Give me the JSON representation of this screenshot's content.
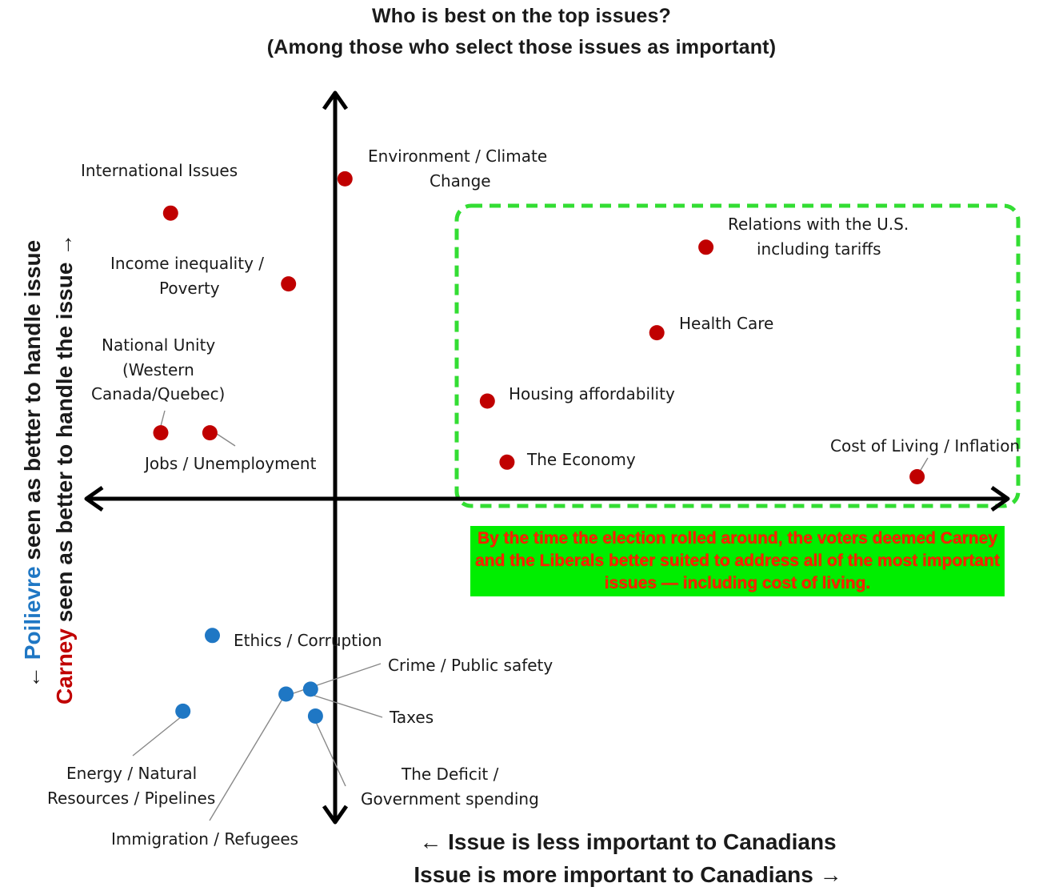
{
  "title": "Who is best on the top issues?",
  "subtitle": "(Among those who select those issues as important)",
  "x_caption_line1": "← Issue is less important to Canadians",
  "x_caption_line2": "Issue is more important to Canadians →",
  "y_caption": {
    "outer_name": "Poilievre",
    "outer_rest": " seen as better to handle issue",
    "outer_prefix": "← ",
    "inner_name": "Carney",
    "inner_rest": " seen as better to handle  the issue →"
  },
  "callout_text": "By the time the election rolled around, the voters deemed Carney and the Liberals better suited to address all of the most important issues — including cost of living.",
  "colors": {
    "carney": "#c00000",
    "poilievre": "#1f77c4",
    "box": "#33dd33",
    "callout_bg": "#00ee00",
    "callout_text": "#ff2200"
  },
  "chart_data": {
    "type": "scatter",
    "title": "Who is best on the top issues?",
    "subtitle": "(Among those who select those issues as important)",
    "xlabel": "← Issue is less important to Canadians / Issue is more important to Canadians →",
    "ylabel": "← Poilievre seen as better to handle issue / Carney seen as better to handle the issue →",
    "xlim": [
      -1,
      2.75
    ],
    "ylim": [
      -1.3,
      1.6
    ],
    "grid": false,
    "series": [
      {
        "name": "Carney",
        "color": "#c00000",
        "points": [
          {
            "label": "Environment / Climate Change",
            "x": 0.04,
            "y": 1.31
          },
          {
            "label": "International Issues",
            "x": -0.67,
            "y": 1.17
          },
          {
            "label": "Income inequality / Poverty",
            "x": -0.19,
            "y": 0.88
          },
          {
            "label": "National Unity (Western Canada/Quebec)",
            "x": -0.71,
            "y": 0.27
          },
          {
            "label": "Jobs / Unemployment",
            "x": -0.51,
            "y": 0.27
          },
          {
            "label": "Relations with the U.S. including tariffs",
            "x": 1.51,
            "y": 1.03
          },
          {
            "label": "Health Care",
            "x": 1.31,
            "y": 0.68
          },
          {
            "label": "Housing affordability",
            "x": 0.62,
            "y": 0.4
          },
          {
            "label": "The Economy",
            "x": 0.7,
            "y": 0.15
          },
          {
            "label": "Cost of Living / Inflation",
            "x": 2.37,
            "y": 0.09
          }
        ]
      },
      {
        "name": "Poilievre",
        "color": "#1f77c4",
        "points": [
          {
            "label": "Ethics / Corruption",
            "x": -0.5,
            "y": -0.56
          },
          {
            "label": "Crime / Public safety",
            "x": -0.2,
            "y": -0.8
          },
          {
            "label": "Taxes",
            "x": -0.1,
            "y": -0.78
          },
          {
            "label": "The Deficit / Government spending",
            "x": -0.08,
            "y": -0.89
          },
          {
            "label": "Energy / Natural Resources / Pipelines",
            "x": -0.62,
            "y": -0.87
          }
        ]
      }
    ]
  },
  "labels": {
    "environment_1": "Environment / Climate",
    "environment_2": "Change",
    "international": "International Issues",
    "income_1": "Income inequality /",
    "income_2": "Poverty",
    "unity_1": "National Unity",
    "unity_2": "(Western",
    "unity_3": "Canada/Quebec)",
    "jobs": "Jobs / Unemployment",
    "relations_1": "Relations with the U.S.",
    "relations_2": "including tariffs",
    "health": "Health Care",
    "housing": "Housing affordability",
    "economy": "The Economy",
    "cost": "Cost of Living / Inflation",
    "ethics": "Ethics / Corruption",
    "crime": "Crime / Public safety",
    "taxes": "Taxes",
    "deficit_1": "The Deficit /",
    "deficit_2": "Government spending",
    "energy_1": "Energy / Natural",
    "energy_2": "Resources / Pipelines",
    "immigration": "Immigration / Refugees"
  }
}
